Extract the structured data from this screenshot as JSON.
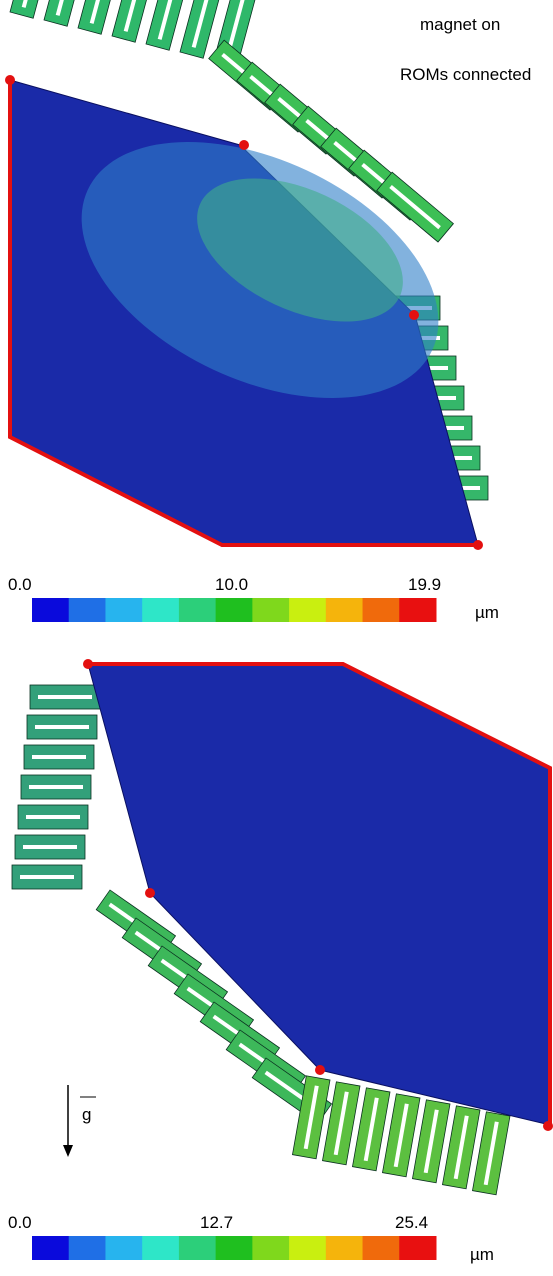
{
  "labels": {
    "status_1": "magnet on",
    "status_2": "ROMs connected",
    "gravity": "g"
  },
  "colorbars": [
    {
      "min": "0.0",
      "mid": "10.0",
      "max": "19.9",
      "unit": "µm"
    },
    {
      "min": "0.0",
      "mid": "12.7",
      "max": "25.4",
      "unit": "µm"
    }
  ]
}
